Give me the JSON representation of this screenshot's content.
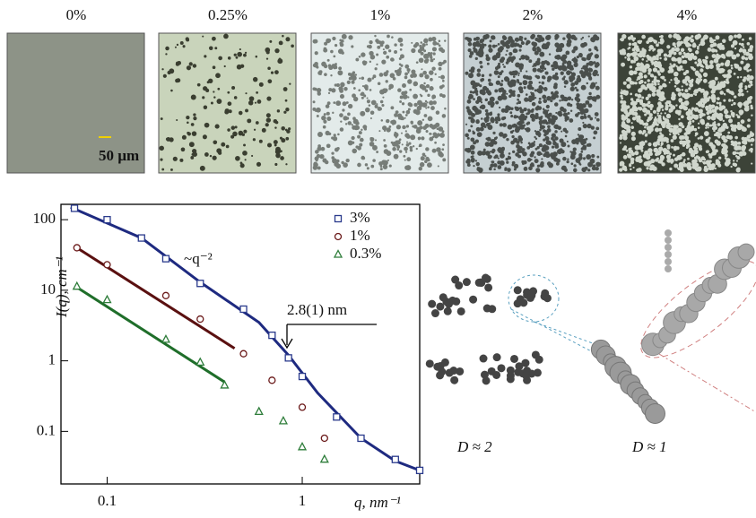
{
  "micrographs": [
    {
      "label": "0%"
    },
    {
      "label": "0.25%"
    },
    {
      "label": "1%"
    },
    {
      "label": "2%"
    },
    {
      "label": "4%"
    }
  ],
  "scale_bar": "50 µm",
  "chart_data": {
    "type": "scatter",
    "log_x": true,
    "log_y": true,
    "x_label": "q, nm⁻¹",
    "y_label": "I(q), cm⁻¹",
    "xlim": [
      0.058,
      4
    ],
    "ylim": [
      0.018,
      165
    ],
    "xticks": [
      0.1,
      1
    ],
    "yticks": [
      0.1,
      1,
      10,
      100
    ],
    "legend": "upper right",
    "annotations": [
      "~q⁻²",
      "2.8(1) nm"
    ],
    "series": [
      {
        "name": "3%",
        "color": "#2a3a8c",
        "marker": "square",
        "x": [
          0.068,
          0.1,
          0.15,
          0.2,
          0.3,
          0.5,
          0.7,
          0.85,
          1,
          1.5,
          2,
          3,
          4
        ],
        "values": [
          145,
          100,
          55,
          28,
          12.5,
          5.4,
          2.3,
          1.1,
          0.6,
          0.16,
          0.08,
          0.04,
          0.028
        ]
      },
      {
        "name": "1%",
        "color": "#6b1a1a",
        "marker": "circle",
        "x": [
          0.07,
          0.1,
          0.2,
          0.3,
          0.5,
          0.7,
          1,
          1.3
        ],
        "values": [
          40,
          23,
          8.4,
          3.9,
          1.26,
          0.53,
          0.22,
          0.08
        ]
      },
      {
        "name": "0.3%",
        "color": "#2e7d3a",
        "marker": "triangle",
        "x": [
          0.07,
          0.1,
          0.2,
          0.3,
          0.4,
          0.6,
          0.8,
          1,
          1.3
        ],
        "values": [
          11.3,
          7.3,
          2,
          0.95,
          0.45,
          0.19,
          0.14,
          0.06,
          0.04
        ]
      }
    ],
    "fits": [
      {
        "color": "#1e2a80",
        "x": [
          0.065,
          0.15,
          0.3,
          0.6,
          0.85,
          1.2,
          2,
          3,
          4
        ],
        "values": [
          150,
          55,
          13,
          3.5,
          1.2,
          0.35,
          0.08,
          0.038,
          0.028
        ]
      },
      {
        "color": "#5a1010",
        "x": [
          0.07,
          0.45
        ],
        "values": [
          40,
          1.5
        ]
      },
      {
        "color": "#1f6e2a",
        "x": [
          0.07,
          0.4
        ],
        "values": [
          11,
          0.5
        ]
      }
    ]
  },
  "schematic": {
    "labels": [
      "D ≈ 2",
      "D ≈ 1"
    ]
  }
}
